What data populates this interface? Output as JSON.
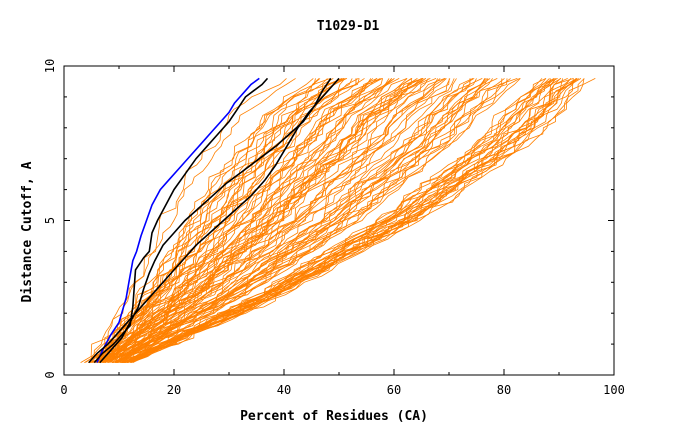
{
  "chart_data": {
    "type": "line",
    "title": "T1029-D1",
    "xlabel": "Percent of Residues (CA)",
    "ylabel": "Distance Cutoff, A",
    "xlim": [
      0,
      100
    ],
    "ylim": [
      0,
      10
    ],
    "x_ticks": [
      0,
      20,
      40,
      60,
      80,
      100
    ],
    "y_ticks": [
      0,
      5,
      10
    ],
    "grid": false,
    "legend": "none",
    "colors": {
      "background_models": "#ff8000",
      "highlight_blue": "#0000ff",
      "highlight_black": "#000000"
    },
    "background_model_count": 110,
    "background_model_envelope": {
      "left_edge": {
        "x": [
          4,
          12,
          20,
          30,
          40
        ],
        "y": [
          0.4,
          3.0,
          6.0,
          8.5,
          9.6
        ]
      },
      "right_edge": {
        "x": [
          12,
          40,
          65,
          85,
          96
        ],
        "y": [
          0.4,
          2.6,
          5.0,
          7.5,
          9.6
        ]
      }
    },
    "series": [
      {
        "color": "#0000ff",
        "x": [
          6.0,
          7.0,
          8.5,
          10.0,
          11.3,
          11.8,
          12.5,
          13.2,
          14.0,
          15.0,
          16.0,
          17.5,
          19.0,
          21.0,
          23.0,
          25.0,
          27.0,
          28.5,
          30.0,
          31.0,
          32.0,
          33.0,
          34.0,
          35.5
        ],
        "y": [
          0.4,
          0.8,
          1.3,
          1.7,
          2.5,
          3.0,
          3.7,
          4.0,
          4.5,
          5.0,
          5.5,
          6.0,
          6.3,
          6.7,
          7.1,
          7.5,
          7.9,
          8.2,
          8.5,
          8.8,
          9.0,
          9.2,
          9.4,
          9.6
        ]
      },
      {
        "color": "#000000",
        "x": [
          5.5,
          7.0,
          9.0,
          10.5,
          12.0,
          12.5,
          13.0,
          14.5,
          15.5,
          16.0,
          17.0,
          18.5,
          20.0,
          22.0,
          24.0,
          26.0,
          28.0,
          30.0,
          31.5,
          33.0,
          34.5,
          36.0,
          37.0
        ],
        "y": [
          0.4,
          0.7,
          1.0,
          1.3,
          1.6,
          2.2,
          3.4,
          3.8,
          4.0,
          4.6,
          5.0,
          5.5,
          6.0,
          6.5,
          7.0,
          7.4,
          7.8,
          8.2,
          8.6,
          9.0,
          9.2,
          9.4,
          9.6
        ]
      },
      {
        "color": "#000000",
        "x": [
          4.5,
          6.0,
          8.0,
          10.0,
          12.0,
          14.0,
          16.0,
          18.0,
          20.0,
          22.0,
          24.0,
          26.5,
          29.0,
          31.5,
          34.0,
          36.5,
          38.5,
          40.5,
          42.5,
          44.5,
          46.5,
          48.5,
          50.0
        ],
        "y": [
          0.4,
          0.7,
          1.0,
          1.4,
          1.8,
          2.2,
          2.6,
          3.0,
          3.4,
          3.8,
          4.2,
          4.6,
          5.0,
          5.4,
          5.8,
          6.3,
          6.8,
          7.4,
          8.0,
          8.5,
          8.9,
          9.3,
          9.6
        ]
      },
      {
        "color": "#000000",
        "x": [
          6.5,
          8.5,
          10.5,
          12.0,
          13.5,
          14.5,
          15.5,
          16.5,
          18.0,
          20.0,
          22.0,
          24.5,
          27.0,
          29.5,
          32.5,
          35.5,
          38.5,
          41.0,
          43.5,
          45.5,
          47.0,
          48.5
        ],
        "y": [
          0.4,
          0.8,
          1.2,
          1.7,
          2.2,
          2.8,
          3.3,
          3.7,
          4.2,
          4.6,
          5.0,
          5.4,
          5.8,
          6.2,
          6.6,
          7.0,
          7.4,
          7.8,
          8.2,
          8.7,
          9.2,
          9.6
        ]
      }
    ]
  }
}
